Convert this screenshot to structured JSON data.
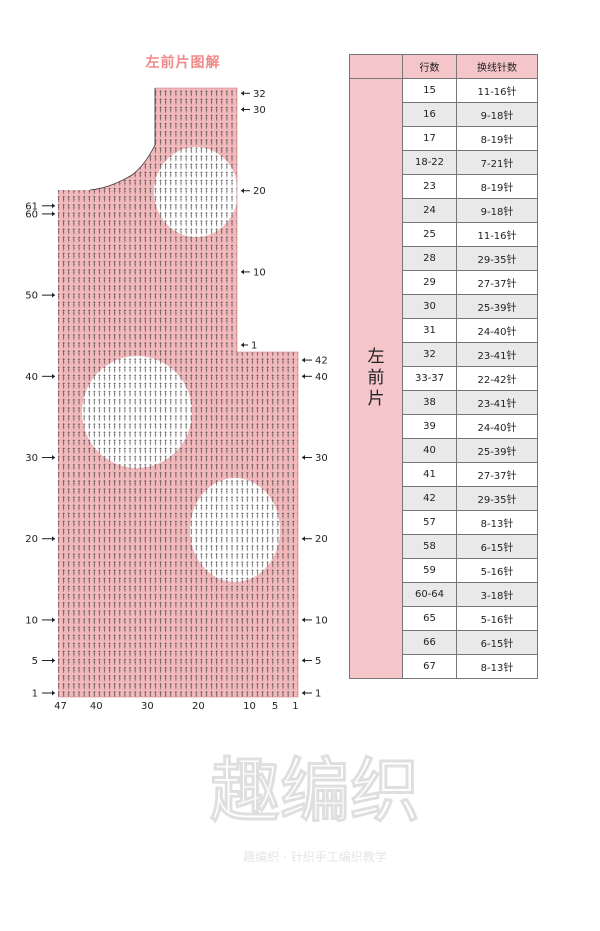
{
  "title": "左前片图解",
  "side_label": "左前片",
  "table": {
    "headers": [
      "行数",
      "换线针数"
    ],
    "rows": [
      [
        "15",
        "11-16针"
      ],
      [
        "16",
        "9-18针"
      ],
      [
        "17",
        "8-19针"
      ],
      [
        "18-22",
        "7-21针"
      ],
      [
        "23",
        "8-19针"
      ],
      [
        "24",
        "9-18针"
      ],
      [
        "25",
        "11-16针"
      ],
      [
        "28",
        "29-35针"
      ],
      [
        "29",
        "27-37针"
      ],
      [
        "30",
        "25-39针"
      ],
      [
        "31",
        "24-40针"
      ],
      [
        "32",
        "23-41针"
      ],
      [
        "33-37",
        "22-42针"
      ],
      [
        "38",
        "23-41针"
      ],
      [
        "39",
        "24-40针"
      ],
      [
        "40",
        "25-39针"
      ],
      [
        "41",
        "27-37针"
      ],
      [
        "42",
        "29-35针"
      ],
      [
        "57",
        "8-13针"
      ],
      [
        "58",
        "6-15针"
      ],
      [
        "59",
        "5-16针"
      ],
      [
        "60-64",
        "3-18针"
      ],
      [
        "65",
        "5-16针"
      ],
      [
        "66",
        "6-15针"
      ],
      [
        "67",
        "8-13针"
      ]
    ]
  },
  "chart": {
    "right_row_labels_lower": [
      "1",
      "5",
      "10",
      "20",
      "30",
      "40",
      "42"
    ],
    "right_row_labels_upper": [
      "1",
      "10",
      "20",
      "30",
      "32"
    ],
    "left_row_labels": [
      "1",
      "5",
      "10",
      "20",
      "30",
      "40",
      "50",
      "60",
      "61"
    ],
    "stitch_labels": [
      "47",
      "40",
      "30",
      "20",
      "10",
      "5",
      "1"
    ],
    "colors": {
      "fill": "#f2b9bc",
      "symbol": "#3a3a3a",
      "motif": "#ffffff"
    }
  },
  "watermark": {
    "text": "趣编织 · 针织手工编织教学"
  }
}
